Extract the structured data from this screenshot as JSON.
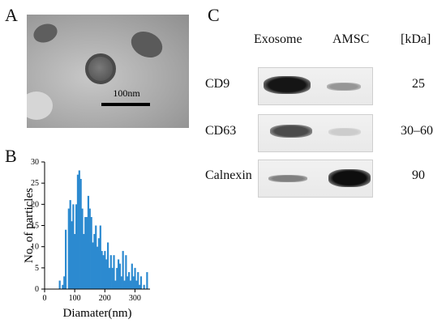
{
  "panels": {
    "a": {
      "label": "A",
      "scale_bar": "100nm"
    },
    "b": {
      "label": "B"
    },
    "c": {
      "label": "C"
    }
  },
  "blot": {
    "columns": [
      "Exosome",
      "AMSC"
    ],
    "unit_header": "[kDa]",
    "rows": [
      {
        "protein": "CD9",
        "kda": "25",
        "exosome_intensity": 0.95,
        "amsc_intensity": 0.35
      },
      {
        "protein": "CD63",
        "kda": "30–60",
        "exosome_intensity": 0.7,
        "amsc_intensity": 0.1
      },
      {
        "protein": "Calnexin",
        "kda": "90",
        "exosome_intensity": 0.45,
        "amsc_intensity": 0.98
      }
    ]
  },
  "chart_data": {
    "type": "bar",
    "xlabel": "Diamater(nm)",
    "ylabel": "No. of particles",
    "xlim": [
      0,
      350
    ],
    "ylim": [
      0,
      30
    ],
    "xticks": [
      "0",
      "100",
      "200",
      "300"
    ],
    "yticks": [
      "0",
      "5",
      "10",
      "15",
      "20",
      "25",
      "30"
    ],
    "x": [
      50,
      60,
      65,
      70,
      80,
      85,
      90,
      95,
      100,
      105,
      110,
      115,
      120,
      125,
      130,
      135,
      140,
      145,
      150,
      155,
      160,
      165,
      170,
      175,
      180,
      185,
      190,
      195,
      200,
      205,
      210,
      215,
      220,
      225,
      230,
      235,
      240,
      245,
      250,
      255,
      260,
      265,
      270,
      275,
      280,
      285,
      290,
      295,
      300,
      305,
      310,
      315,
      320,
      330,
      340
    ],
    "values": [
      2,
      1,
      3,
      14,
      19,
      21,
      16,
      20,
      13,
      20,
      27,
      28,
      26,
      19,
      13,
      17,
      17,
      22,
      19,
      17,
      11,
      13,
      15,
      10,
      12,
      15,
      9,
      8,
      9,
      7,
      11,
      5,
      8,
      5,
      8,
      2,
      5,
      7,
      6,
      3,
      9,
      2,
      8,
      3,
      4,
      2,
      6,
      3,
      5,
      2,
      4,
      1,
      3,
      1,
      4
    ],
    "bar_color": "#2c8ad0"
  }
}
